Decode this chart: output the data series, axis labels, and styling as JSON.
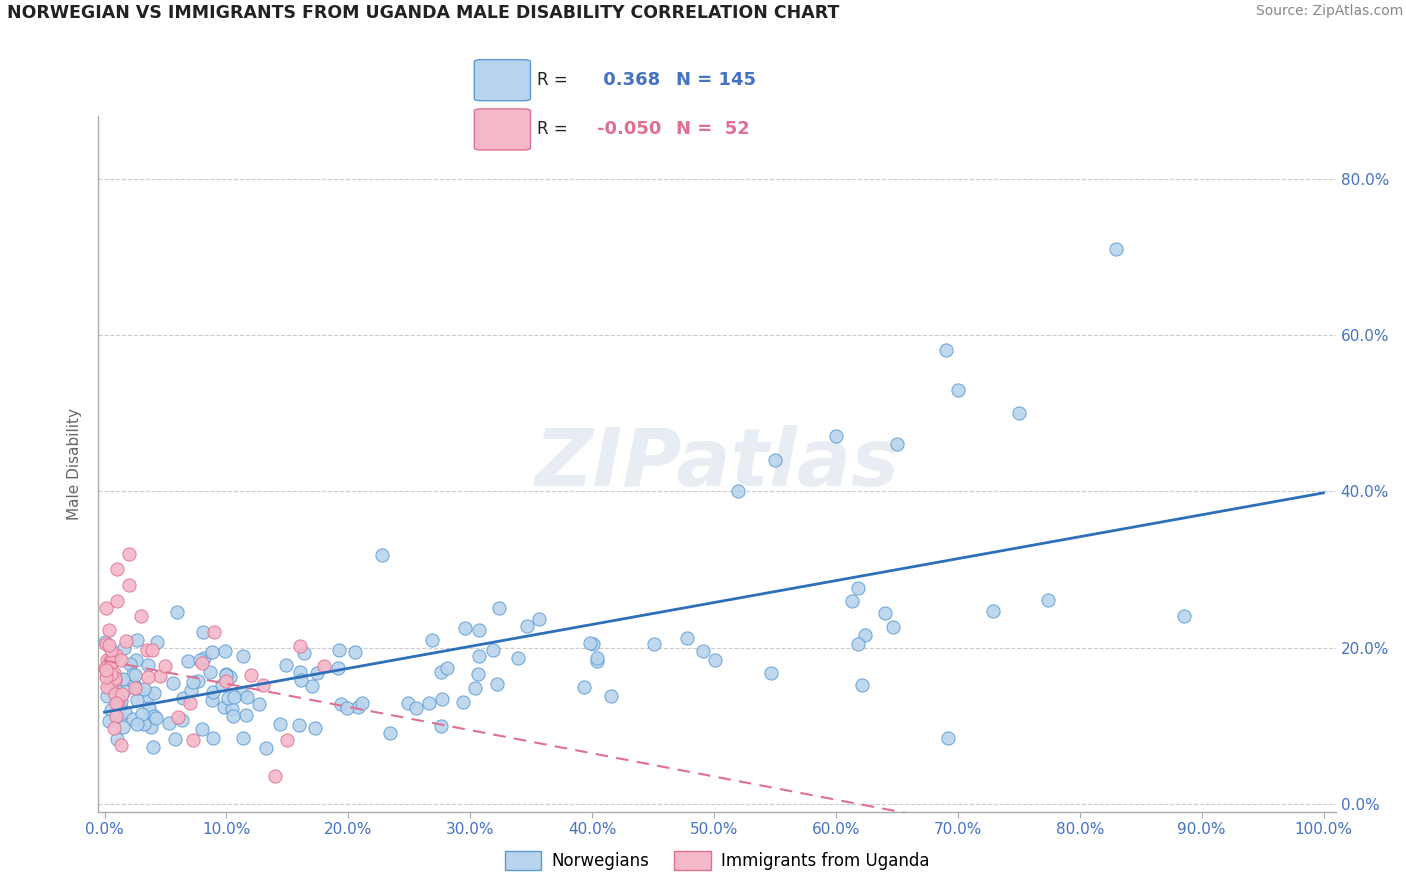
{
  "title": "NORWEGIAN VS IMMIGRANTS FROM UGANDA MALE DISABILITY CORRELATION CHART",
  "source": "Source: ZipAtlas.com",
  "ylabel": "Male Disability",
  "r_norwegian": 0.368,
  "n_norwegian": 145,
  "r_uganda": -0.05,
  "n_uganda": 52,
  "norwegian_color": "#b8d4ec",
  "norwegian_edge_color": "#5b9bd5",
  "uganda_color": "#f4b8c8",
  "uganda_edge_color": "#e07090",
  "norwegian_line_color": "#2e6fba",
  "uganda_line_color": "#e07090",
  "watermark": "ZIPatlas",
  "tick_color": "#4472c4",
  "xlim": [
    -0.005,
    1.01
  ],
  "ylim": [
    -0.01,
    0.88
  ],
  "x_ticks": [
    0.0,
    0.1,
    0.2,
    0.3,
    0.4,
    0.5,
    0.6,
    0.7,
    0.8,
    0.9,
    1.0
  ],
  "y_ticks": [
    0.0,
    0.2,
    0.4,
    0.6,
    0.8
  ],
  "seed": 12345
}
